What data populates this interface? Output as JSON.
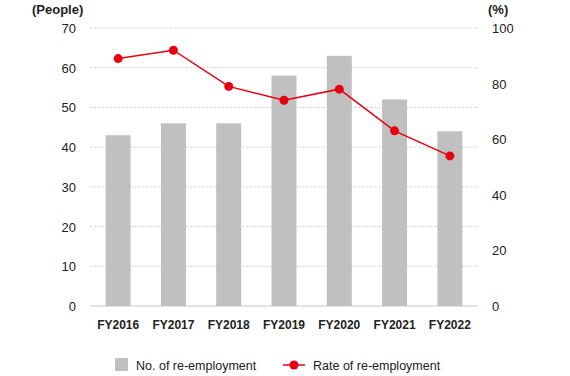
{
  "chart_data": {
    "type": "bar",
    "categories": [
      "FY2016",
      "FY2017",
      "FY2018",
      "FY2019",
      "FY2020",
      "FY2021",
      "FY2022"
    ],
    "series": [
      {
        "name": "No. of re-employment",
        "color": "#c0c0c0",
        "type": "bar",
        "values": [
          43,
          46,
          46,
          58,
          63,
          52,
          44
        ]
      },
      {
        "name": "Rate of re-employment",
        "color": "#e60012",
        "type": "line",
        "axis": "y2",
        "marker": "circle",
        "values": [
          89,
          92,
          79,
          74,
          78,
          63,
          54
        ]
      }
    ],
    "y_label": "(People)",
    "y2_label": "(%)",
    "ylim": [
      0,
      70
    ],
    "yticks": [
      0,
      10,
      20,
      30,
      40,
      50,
      60,
      70
    ],
    "y2lim": [
      0,
      100
    ],
    "y2ticks": [
      0,
      20,
      40,
      60,
      80,
      100
    ],
    "grid": true,
    "legend": "bottom"
  }
}
